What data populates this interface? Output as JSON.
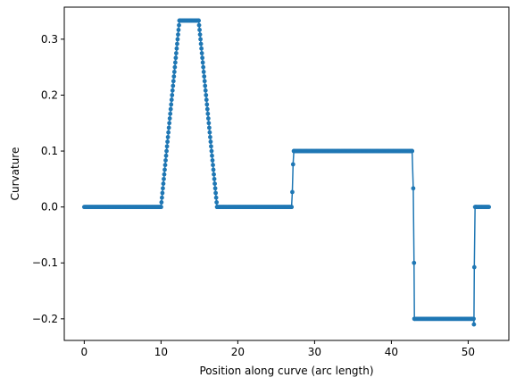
{
  "chart_data": {
    "type": "line",
    "title": "",
    "xlabel": "Position along curve (arc length)",
    "ylabel": "Curvature",
    "xlim": [
      -2.6,
      55.3
    ],
    "ylim": [
      -0.2386,
      0.3573
    ],
    "grid": false,
    "legend": "none",
    "series": [
      {
        "color": "#1f77b4",
        "marker": "circle",
        "segments": [
          {
            "x": [
              0,
              10.0
            ],
            "y": [
              0,
              0
            ],
            "kind": "flat"
          },
          {
            "x": [
              10.0,
              12.4
            ],
            "y": [
              0,
              0.3333
            ],
            "kind": "ramp"
          },
          {
            "x": [
              12.4,
              14.9
            ],
            "y": [
              0.3333,
              0.3333
            ],
            "kind": "flat"
          },
          {
            "x": [
              14.9,
              17.3
            ],
            "y": [
              0.3333,
              0
            ],
            "kind": "ramp"
          },
          {
            "x": [
              17.3,
              27.0
            ],
            "y": [
              0,
              0
            ],
            "kind": "flat"
          },
          {
            "x": [
              27.0,
              27.1,
              27.2,
              27.3
            ],
            "y": [
              0,
              0.0267,
              0.0763,
              0.1
            ],
            "kind": "points"
          },
          {
            "x": [
              27.3,
              42.7
            ],
            "y": [
              0.1,
              0.1
            ],
            "kind": "flat"
          },
          {
            "x": [
              42.7,
              42.85,
              42.95,
              43.0
            ],
            "y": [
              0.1,
              0.0333,
              -0.1,
              -0.2
            ],
            "kind": "points"
          },
          {
            "x": [
              43.0,
              50.7
            ],
            "y": [
              -0.2,
              -0.2
            ],
            "kind": "flat"
          },
          {
            "x": [
              50.7,
              50.75,
              50.8,
              50.9,
              51.0
            ],
            "y": [
              -0.2,
              -0.21,
              -0.1077,
              0.0,
              0.0
            ],
            "kind": "points"
          },
          {
            "x": [
              51.0,
              52.7
            ],
            "y": [
              0,
              0
            ],
            "kind": "flat"
          }
        ]
      }
    ],
    "xticks": [
      0,
      10,
      20,
      30,
      40,
      50
    ],
    "yticks": [
      -0.2,
      -0.1,
      0.0,
      0.1,
      0.2,
      0.3
    ],
    "xtick_labels": [
      "0",
      "10",
      "20",
      "30",
      "40",
      "50"
    ],
    "ytick_labels": [
      "−0.2",
      "−0.1",
      "0.0",
      "0.1",
      "0.2",
      "0.3"
    ]
  }
}
